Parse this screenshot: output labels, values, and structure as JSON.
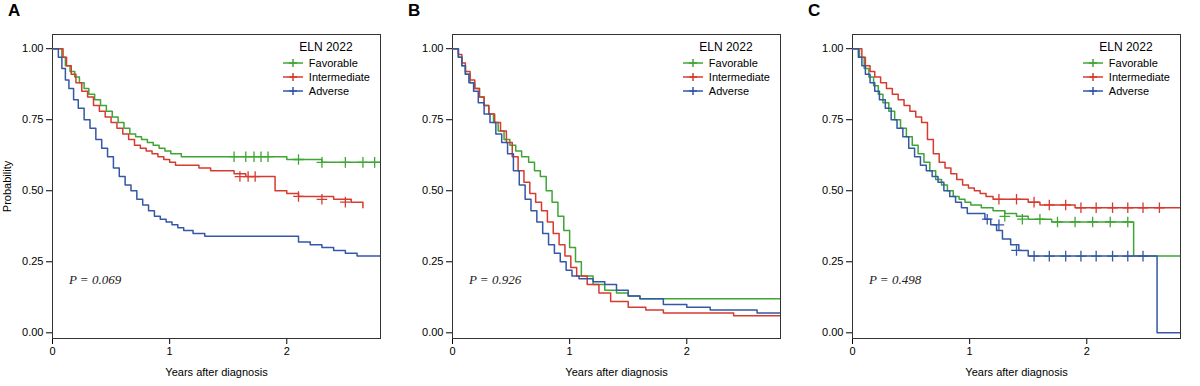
{
  "chart_data": [
    {
      "type": "step",
      "title": "A",
      "annotation": "P = 0.069",
      "legend_title": "ELN 2022",
      "legend": "upper right",
      "xlabel": "Years after diagnosis",
      "ylabel": "Probability",
      "xlim": [
        0,
        2.8
      ],
      "ylim": [
        -0.02,
        1.05
      ],
      "xticks": [
        0,
        1,
        2
      ],
      "yticks": [
        {
          "value": 0.0,
          "label": "0.00"
        },
        {
          "value": 0.25,
          "label": "0.25"
        },
        {
          "value": 0.5,
          "label": "0.50"
        },
        {
          "value": 0.75,
          "label": "0.75"
        },
        {
          "value": 1.0,
          "label": "1.00"
        }
      ],
      "series": [
        {
          "name": "Favorable",
          "color": "#3fa535",
          "marker": "plus",
          "x": [
            0,
            0.05,
            0.08,
            0.11,
            0.15,
            0.19,
            0.23,
            0.27,
            0.31,
            0.36,
            0.41,
            0.46,
            0.51,
            0.56,
            0.61,
            0.66,
            0.71,
            0.76,
            0.81,
            0.86,
            0.91,
            0.96,
            1.01,
            1.1,
            1.2,
            1.3,
            1.4,
            1.5,
            1.6,
            1.65,
            1.7,
            1.8,
            1.9,
            2.0,
            2.1,
            2.2,
            2.3,
            2.4,
            2.5,
            2.6,
            2.7,
            2.8
          ],
          "values": [
            1.0,
            1.0,
            0.97,
            0.94,
            0.92,
            0.9,
            0.88,
            0.86,
            0.84,
            0.82,
            0.8,
            0.78,
            0.76,
            0.74,
            0.72,
            0.7,
            0.69,
            0.68,
            0.67,
            0.66,
            0.65,
            0.64,
            0.63,
            0.62,
            0.62,
            0.62,
            0.62,
            0.62,
            0.62,
            0.62,
            0.62,
            0.62,
            0.62,
            0.61,
            0.61,
            0.61,
            0.6,
            0.6,
            0.6,
            0.6,
            0.6,
            0.6
          ],
          "censor_x": [
            1.55,
            1.65,
            1.72,
            1.78,
            1.84,
            2.1,
            2.3,
            2.5,
            2.65,
            2.75
          ],
          "censor_y": [
            0.62,
            0.62,
            0.62,
            0.62,
            0.62,
            0.61,
            0.6,
            0.6,
            0.6,
            0.6
          ]
        },
        {
          "name": "Intermediate",
          "color": "#d63b2f",
          "marker": "plus",
          "x": [
            0,
            0.06,
            0.09,
            0.12,
            0.16,
            0.2,
            0.25,
            0.3,
            0.35,
            0.4,
            0.45,
            0.5,
            0.55,
            0.6,
            0.65,
            0.7,
            0.75,
            0.8,
            0.85,
            0.9,
            0.95,
            1.0,
            1.05,
            1.15,
            1.25,
            1.35,
            1.45,
            1.55,
            1.65,
            1.7,
            1.8,
            1.9,
            2.0,
            2.1,
            2.2,
            2.4,
            2.55,
            2.65
          ],
          "values": [
            1.0,
            1.0,
            0.97,
            0.94,
            0.91,
            0.88,
            0.85,
            0.83,
            0.8,
            0.78,
            0.76,
            0.74,
            0.72,
            0.7,
            0.68,
            0.66,
            0.65,
            0.64,
            0.63,
            0.62,
            0.61,
            0.6,
            0.59,
            0.59,
            0.58,
            0.57,
            0.57,
            0.56,
            0.55,
            0.55,
            0.55,
            0.5,
            0.49,
            0.48,
            0.48,
            0.47,
            0.46,
            0.44
          ],
          "censor_x": [
            1.6,
            1.67,
            1.73,
            2.1,
            2.3,
            2.5
          ],
          "censor_y": [
            0.55,
            0.55,
            0.55,
            0.48,
            0.47,
            0.46
          ]
        },
        {
          "name": "Adverse",
          "color": "#3557a7",
          "marker": "plus",
          "x": [
            0,
            0.05,
            0.08,
            0.11,
            0.14,
            0.18,
            0.22,
            0.27,
            0.32,
            0.37,
            0.42,
            0.47,
            0.52,
            0.57,
            0.62,
            0.67,
            0.72,
            0.77,
            0.82,
            0.87,
            0.92,
            0.97,
            1.02,
            1.07,
            1.12,
            1.2,
            1.3,
            1.4,
            1.5,
            1.6,
            1.7,
            1.8,
            1.9,
            2.0,
            2.1,
            2.2,
            2.3,
            2.4,
            2.5,
            2.6,
            2.7,
            2.8
          ],
          "values": [
            1.0,
            0.97,
            0.93,
            0.89,
            0.86,
            0.82,
            0.79,
            0.75,
            0.72,
            0.68,
            0.65,
            0.62,
            0.58,
            0.55,
            0.52,
            0.5,
            0.47,
            0.45,
            0.43,
            0.41,
            0.4,
            0.39,
            0.38,
            0.37,
            0.36,
            0.35,
            0.34,
            0.34,
            0.34,
            0.34,
            0.34,
            0.34,
            0.34,
            0.34,
            0.32,
            0.31,
            0.3,
            0.29,
            0.28,
            0.27,
            0.27,
            0.27
          ],
          "censor_x": [],
          "censor_y": []
        }
      ]
    },
    {
      "type": "step",
      "title": "B",
      "annotation": "P = 0.926",
      "legend_title": "ELN 2022",
      "legend": "upper right",
      "xlabel": "Years after diagnosis",
      "xlim": [
        0,
        2.8
      ],
      "ylim": [
        -0.02,
        1.05
      ],
      "xticks": [
        0,
        1,
        2
      ],
      "yticks": [
        {
          "value": 0.0,
          "label": "0.00"
        },
        {
          "value": 0.25,
          "label": "0.25"
        },
        {
          "value": 0.5,
          "label": "0.50"
        },
        {
          "value": 0.75,
          "label": "0.75"
        },
        {
          "value": 1.0,
          "label": "1.00"
        }
      ],
      "series": [
        {
          "name": "Favorable",
          "color": "#3fa535",
          "marker": "plus",
          "x": [
            0,
            0.05,
            0.08,
            0.11,
            0.15,
            0.19,
            0.23,
            0.27,
            0.31,
            0.35,
            0.39,
            0.44,
            0.49,
            0.54,
            0.59,
            0.65,
            0.7,
            0.75,
            0.8,
            0.85,
            0.9,
            0.95,
            1.0,
            1.05,
            1.1,
            1.2,
            1.3,
            1.4,
            1.5,
            1.6,
            1.8,
            2.0,
            2.2,
            2.4,
            2.6,
            2.8
          ],
          "values": [
            1.0,
            0.97,
            0.94,
            0.91,
            0.88,
            0.86,
            0.83,
            0.8,
            0.77,
            0.74,
            0.71,
            0.68,
            0.66,
            0.64,
            0.62,
            0.6,
            0.57,
            0.55,
            0.5,
            0.46,
            0.41,
            0.36,
            0.3,
            0.25,
            0.2,
            0.17,
            0.15,
            0.14,
            0.13,
            0.12,
            0.12,
            0.12,
            0.12,
            0.12,
            0.12,
            0.12
          ],
          "censor_x": [],
          "censor_y": []
        },
        {
          "name": "Intermediate",
          "color": "#d63b2f",
          "marker": "plus",
          "x": [
            0,
            0.05,
            0.08,
            0.11,
            0.15,
            0.19,
            0.23,
            0.27,
            0.31,
            0.36,
            0.41,
            0.46,
            0.51,
            0.56,
            0.61,
            0.66,
            0.71,
            0.76,
            0.81,
            0.86,
            0.91,
            0.96,
            1.01,
            1.06,
            1.15,
            1.25,
            1.35,
            1.5,
            1.65,
            1.8,
            2.0,
            2.2,
            2.4,
            2.6,
            2.8
          ],
          "values": [
            1.0,
            0.98,
            0.95,
            0.92,
            0.89,
            0.86,
            0.83,
            0.8,
            0.77,
            0.74,
            0.71,
            0.67,
            0.62,
            0.57,
            0.53,
            0.49,
            0.46,
            0.43,
            0.39,
            0.35,
            0.31,
            0.27,
            0.23,
            0.2,
            0.17,
            0.14,
            0.11,
            0.09,
            0.08,
            0.07,
            0.07,
            0.07,
            0.06,
            0.06,
            0.06
          ],
          "censor_x": [],
          "censor_y": []
        },
        {
          "name": "Adverse",
          "color": "#3557a7",
          "marker": "plus",
          "x": [
            0,
            0.05,
            0.08,
            0.11,
            0.14,
            0.18,
            0.22,
            0.27,
            0.32,
            0.37,
            0.42,
            0.47,
            0.52,
            0.57,
            0.62,
            0.67,
            0.72,
            0.77,
            0.82,
            0.87,
            0.92,
            0.97,
            1.02,
            1.08,
            1.14,
            1.2,
            1.3,
            1.4,
            1.5,
            1.6,
            1.8,
            2.0,
            2.2,
            2.4,
            2.6,
            2.8
          ],
          "values": [
            1.0,
            0.97,
            0.94,
            0.91,
            0.88,
            0.85,
            0.81,
            0.77,
            0.74,
            0.7,
            0.67,
            0.63,
            0.57,
            0.52,
            0.47,
            0.43,
            0.39,
            0.35,
            0.31,
            0.28,
            0.25,
            0.22,
            0.2,
            0.19,
            0.19,
            0.18,
            0.17,
            0.15,
            0.13,
            0.12,
            0.1,
            0.09,
            0.08,
            0.08,
            0.07,
            0.07
          ],
          "censor_x": [],
          "censor_y": []
        }
      ]
    },
    {
      "type": "step",
      "title": "C",
      "annotation": "P = 0.498",
      "legend_title": "ELN 2022",
      "legend": "upper right",
      "xlabel": "Years after diagnosis",
      "xlim": [
        0,
        2.8
      ],
      "ylim": [
        -0.02,
        1.05
      ],
      "xticks": [
        0,
        1,
        2
      ],
      "yticks": [
        {
          "value": 0.0,
          "label": "0.00"
        },
        {
          "value": 0.25,
          "label": "0.25"
        },
        {
          "value": 0.5,
          "label": "0.50"
        },
        {
          "value": 0.75,
          "label": "0.75"
        },
        {
          "value": 1.0,
          "label": "1.00"
        }
      ],
      "series": [
        {
          "name": "Favorable",
          "color": "#3fa535",
          "marker": "plus",
          "x": [
            0,
            0.06,
            0.1,
            0.14,
            0.18,
            0.22,
            0.26,
            0.31,
            0.36,
            0.41,
            0.46,
            0.51,
            0.56,
            0.61,
            0.66,
            0.71,
            0.76,
            0.81,
            0.86,
            0.91,
            0.96,
            1.01,
            1.1,
            1.2,
            1.3,
            1.4,
            1.5,
            1.6,
            1.7,
            1.8,
            1.9,
            2.0,
            2.1,
            2.2,
            2.3,
            2.4,
            2.5,
            2.6,
            2.7,
            2.8
          ],
          "values": [
            1.0,
            0.97,
            0.93,
            0.9,
            0.87,
            0.84,
            0.81,
            0.78,
            0.75,
            0.72,
            0.69,
            0.66,
            0.63,
            0.6,
            0.57,
            0.54,
            0.52,
            0.5,
            0.48,
            0.47,
            0.46,
            0.45,
            0.44,
            0.43,
            0.42,
            0.41,
            0.4,
            0.4,
            0.39,
            0.39,
            0.39,
            0.39,
            0.39,
            0.39,
            0.39,
            0.27,
            0.27,
            0.27,
            0.27,
            0.27
          ],
          "censor_x": [
            1.3,
            1.45,
            1.6,
            1.75,
            1.9,
            2.05,
            2.2,
            2.35
          ],
          "censor_y": [
            0.41,
            0.4,
            0.4,
            0.39,
            0.39,
            0.39,
            0.39,
            0.39
          ]
        },
        {
          "name": "Intermediate",
          "color": "#d63b2f",
          "marker": "plus",
          "x": [
            0,
            0.05,
            0.08,
            0.11,
            0.15,
            0.19,
            0.24,
            0.29,
            0.34,
            0.39,
            0.44,
            0.49,
            0.54,
            0.59,
            0.64,
            0.69,
            0.74,
            0.79,
            0.84,
            0.89,
            0.94,
            0.99,
            1.04,
            1.09,
            1.14,
            1.2,
            1.3,
            1.4,
            1.5,
            1.6,
            1.7,
            1.8,
            1.9,
            2.0,
            2.1,
            2.2,
            2.3,
            2.4,
            2.5,
            2.6,
            2.7,
            2.8
          ],
          "values": [
            1.0,
            1.0,
            0.97,
            0.94,
            0.92,
            0.9,
            0.88,
            0.86,
            0.84,
            0.82,
            0.8,
            0.78,
            0.76,
            0.74,
            0.68,
            0.63,
            0.6,
            0.58,
            0.56,
            0.54,
            0.52,
            0.51,
            0.5,
            0.49,
            0.48,
            0.47,
            0.47,
            0.47,
            0.46,
            0.45,
            0.45,
            0.45,
            0.44,
            0.44,
            0.44,
            0.44,
            0.44,
            0.44,
            0.44,
            0.44,
            0.44,
            0.44
          ],
          "censor_x": [
            1.25,
            1.4,
            1.55,
            1.68,
            1.82,
            1.95,
            2.08,
            2.22,
            2.35,
            2.48,
            2.62
          ],
          "censor_y": [
            0.47,
            0.47,
            0.46,
            0.45,
            0.45,
            0.44,
            0.44,
            0.44,
            0.44,
            0.44,
            0.44
          ]
        },
        {
          "name": "Adverse",
          "color": "#3557a7",
          "marker": "plus",
          "x": [
            0,
            0.05,
            0.08,
            0.11,
            0.15,
            0.19,
            0.23,
            0.28,
            0.33,
            0.38,
            0.43,
            0.48,
            0.53,
            0.58,
            0.63,
            0.68,
            0.73,
            0.78,
            0.83,
            0.88,
            0.93,
            0.98,
            1.03,
            1.08,
            1.13,
            1.18,
            1.23,
            1.28,
            1.35,
            1.42,
            1.5,
            1.6,
            1.7,
            1.8,
            1.9,
            2.0,
            2.1,
            2.2,
            2.3,
            2.4,
            2.5,
            2.55,
            2.6,
            2.7,
            2.8
          ],
          "values": [
            1.0,
            0.97,
            0.94,
            0.91,
            0.88,
            0.85,
            0.82,
            0.79,
            0.75,
            0.72,
            0.69,
            0.65,
            0.62,
            0.59,
            0.57,
            0.55,
            0.53,
            0.5,
            0.48,
            0.46,
            0.44,
            0.42,
            0.42,
            0.42,
            0.4,
            0.38,
            0.36,
            0.33,
            0.31,
            0.29,
            0.27,
            0.27,
            0.27,
            0.27,
            0.27,
            0.27,
            0.27,
            0.27,
            0.27,
            0.27,
            0.27,
            0.27,
            0.0,
            0.0,
            0.0
          ],
          "censor_x": [
            1.15,
            1.25,
            1.4,
            1.55,
            1.68,
            1.82,
            1.95,
            2.08,
            2.22,
            2.35,
            2.48
          ],
          "censor_y": [
            0.4,
            0.38,
            0.29,
            0.27,
            0.27,
            0.27,
            0.27,
            0.27,
            0.27,
            0.27,
            0.27
          ]
        }
      ]
    }
  ]
}
